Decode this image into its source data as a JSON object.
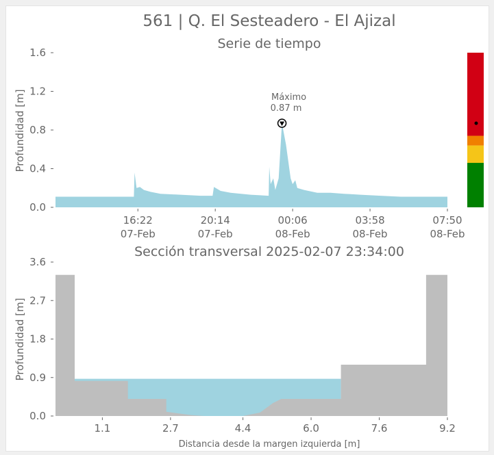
{
  "figure": {
    "title": "561 | Q. El Sesteadero - El Ajizal",
    "colors": {
      "water": "#9fd3e0",
      "terrain": "#bebebe",
      "text": "#666666"
    }
  },
  "chart_data": [
    {
      "type": "area",
      "title": "Serie de tiempo",
      "xlabel": "",
      "ylabel": "Profundidad [m]",
      "ylim": [
        0,
        1.6
      ],
      "yticks": [
        "0.0",
        "0.4",
        "0.8",
        "1.2",
        "1.6"
      ],
      "xlim": [
        "2025-02-07 12:15",
        "2025-02-08 07:50"
      ],
      "xticks": [
        {
          "t": "2025-02-07 16:22",
          "time": "16:22",
          "date": "07-Feb"
        },
        {
          "t": "2025-02-07 20:14",
          "time": "20:14",
          "date": "07-Feb"
        },
        {
          "t": "2025-02-08 00:06",
          "time": "00:06",
          "date": "08-Feb"
        },
        {
          "t": "2025-02-08 03:58",
          "time": "03:58",
          "date": "08-Feb"
        },
        {
          "t": "2025-02-08 07:50",
          "time": "07:50",
          "date": "08-Feb"
        }
      ],
      "series": [
        {
          "t": [
            "2025-02-07 12:15",
            "2025-02-07 13:00",
            "2025-02-07 14:00",
            "2025-02-07 15:00",
            "2025-02-07 16:00",
            "2025-02-07 16:10",
            "2025-02-07 16:12",
            "2025-02-07 16:18",
            "2025-02-07 16:28",
            "2025-02-07 16:40",
            "2025-02-07 17:00",
            "2025-02-07 17:30",
            "2025-02-07 18:30",
            "2025-02-07 19:30",
            "2025-02-07 20:00",
            "2025-02-07 20:06",
            "2025-02-07 20:10",
            "2025-02-07 20:30",
            "2025-02-07 21:00",
            "2025-02-07 22:00",
            "2025-02-07 22:54",
            "2025-02-07 22:56",
            "2025-02-07 23:00",
            "2025-02-07 23:08",
            "2025-02-07 23:14",
            "2025-02-07 23:24",
            "2025-02-07 23:34",
            "2025-02-07 23:46",
            "2025-02-08 00:00",
            "2025-02-08 00:06",
            "2025-02-08 00:14",
            "2025-02-08 00:20",
            "2025-02-08 00:40",
            "2025-02-08 01:20",
            "2025-02-08 02:00",
            "2025-02-08 02:40",
            "2025-02-08 03:30",
            "2025-02-08 04:30",
            "2025-02-08 05:30",
            "2025-02-08 06:30",
            "2025-02-08 07:50"
          ],
          "values": [
            0.11,
            0.11,
            0.11,
            0.11,
            0.11,
            0.11,
            0.36,
            0.2,
            0.21,
            0.18,
            0.16,
            0.14,
            0.13,
            0.12,
            0.12,
            0.12,
            0.21,
            0.17,
            0.15,
            0.13,
            0.12,
            0.42,
            0.24,
            0.3,
            0.18,
            0.3,
            0.87,
            0.65,
            0.3,
            0.24,
            0.28,
            0.2,
            0.18,
            0.15,
            0.15,
            0.14,
            0.13,
            0.12,
            0.11,
            0.11,
            0.11
          ]
        }
      ],
      "annotation": {
        "t": "2025-02-07 23:34",
        "y": 0.87,
        "line1": "Máximo",
        "line2": "0.87 m"
      }
    },
    {
      "type": "area",
      "title": "Sección transversal 2025-02-07 23:34:00",
      "xlabel": "Distancia desde la margen izquierda [m]",
      "ylabel": "Profundidad [m]",
      "xlim": [
        0,
        9.2
      ],
      "ylim": [
        0,
        3.6
      ],
      "xticks": [
        "1.1",
        "2.7",
        "4.4",
        "6.0",
        "7.6",
        "9.2"
      ],
      "yticks": [
        "0.0",
        "0.9",
        "1.8",
        "2.7",
        "3.6"
      ],
      "water_level": 0.87,
      "terrain": {
        "x": [
          0,
          0.45,
          0.45,
          1.7,
          1.7,
          2.6,
          2.6,
          3.2,
          3.5,
          4.4,
          4.8,
          5.1,
          5.3,
          6.7,
          6.7,
          8.7,
          8.7,
          9.2
        ],
        "y": [
          3.3,
          3.3,
          0.82,
          0.82,
          0.4,
          0.4,
          0.1,
          0.02,
          0.0,
          0.0,
          0.08,
          0.3,
          0.4,
          0.4,
          1.2,
          1.2,
          3.3,
          3.3
        ]
      }
    },
    {
      "type": "bar",
      "title": "",
      "categories": [
        "verde",
        "amarillo",
        "naranja",
        "rojo"
      ],
      "values": [
        0.46,
        0.64,
        0.74,
        1.6
      ],
      "colors": [
        "#008000",
        "#f5c518",
        "#f08000",
        "#d10014"
      ],
      "ylim": [
        0,
        1.6
      ],
      "current_level": 0.87
    }
  ]
}
